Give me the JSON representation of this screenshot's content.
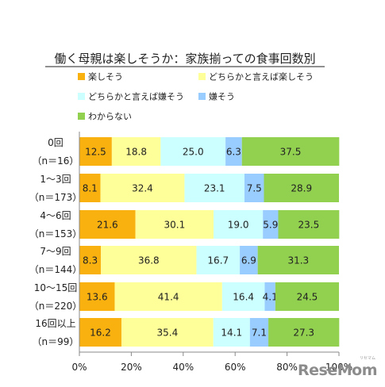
{
  "chart_data": {
    "type": "bar",
    "orientation": "horizontal",
    "stacked": "percent",
    "title": "働く母親は楽しそうか：家族揃っての食事回数別",
    "categories": [
      [
        "0回",
        "（n＝16）"
      ],
      [
        "1～3回",
        "（n＝173）"
      ],
      [
        "4～6回",
        "（n＝153）"
      ],
      [
        "7～9回",
        "（n＝144）"
      ],
      [
        "10～15回",
        "（n＝220）"
      ],
      [
        "16回以上",
        "（n＝99）"
      ]
    ],
    "series": [
      {
        "name": "楽しそう",
        "color": "#f9b10f",
        "values": [
          12.5,
          8.1,
          21.6,
          8.3,
          13.6,
          16.2
        ]
      },
      {
        "name": "どちらかと言えば楽しそう",
        "color": "#ffff99",
        "values": [
          18.8,
          32.4,
          30.1,
          36.8,
          41.4,
          35.4
        ]
      },
      {
        "name": "どちらかと言えば嫌そう",
        "color": "#ccffff",
        "values": [
          25.0,
          23.1,
          19.0,
          16.7,
          16.4,
          14.1
        ]
      },
      {
        "name": "嫌そう",
        "color": "#99ccff",
        "values": [
          6.3,
          7.5,
          5.9,
          6.9,
          4.1,
          7.1
        ]
      },
      {
        "name": "わからない",
        "color": "#92d050",
        "values": [
          37.5,
          28.9,
          23.5,
          31.3,
          24.5,
          27.3
        ]
      }
    ],
    "xlim": [
      0,
      100
    ],
    "xticks": [
      "0%",
      "20%",
      "40%",
      "60%",
      "80%",
      "100%"
    ],
    "grid": false,
    "legend_position": "top-left"
  },
  "watermark": {
    "text": "ReseMom",
    "sub": "リセマム"
  }
}
